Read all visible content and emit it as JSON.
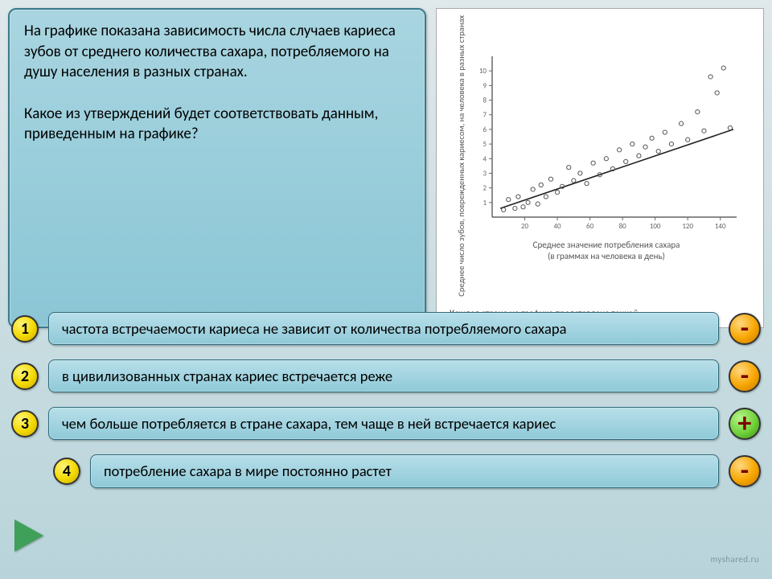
{
  "question": {
    "paragraph1": "На графике показана зависимость числа случаев кариеса зубов от среднего количества сахара, потребляемого на душу населения в разных странах.",
    "paragraph2": "Какое из утверждений будет соответствовать данным, приведенным на графике?"
  },
  "chart": {
    "type": "scatter",
    "y_label": "Среднее число зубов, поврежденных кариесом, на человека в разных странах",
    "x_label_line1": "Среднее значение потребления сахара",
    "x_label_line2": "(в граммах на человека в день)",
    "caption": "Каждая страна на графике представлена точкой.",
    "xlim": [
      0,
      150
    ],
    "ylim": [
      0,
      11
    ],
    "xticks": [
      20,
      40,
      60,
      80,
      100,
      120,
      140
    ],
    "yticks": [
      1,
      2,
      3,
      4,
      5,
      6,
      7,
      8,
      9,
      10
    ],
    "trend_line": {
      "x1": 5,
      "y1": 0.6,
      "x2": 148,
      "y2": 6.0
    },
    "points": [
      [
        7,
        0.5
      ],
      [
        10,
        1.2
      ],
      [
        14,
        0.6
      ],
      [
        16,
        1.4
      ],
      [
        19,
        0.7
      ],
      [
        22,
        1.0
      ],
      [
        25,
        1.9
      ],
      [
        28,
        0.9
      ],
      [
        30,
        2.2
      ],
      [
        33,
        1.4
      ],
      [
        36,
        2.6
      ],
      [
        40,
        1.7
      ],
      [
        43,
        2.1
      ],
      [
        47,
        3.4
      ],
      [
        50,
        2.5
      ],
      [
        54,
        3.0
      ],
      [
        58,
        2.3
      ],
      [
        62,
        3.7
      ],
      [
        66,
        2.9
      ],
      [
        70,
        4.0
      ],
      [
        74,
        3.3
      ],
      [
        78,
        4.6
      ],
      [
        82,
        3.8
      ],
      [
        86,
        5.0
      ],
      [
        90,
        4.2
      ],
      [
        94,
        4.8
      ],
      [
        98,
        5.4
      ],
      [
        102,
        4.5
      ],
      [
        106,
        5.8
      ],
      [
        110,
        5.0
      ],
      [
        116,
        6.4
      ],
      [
        120,
        5.3
      ],
      [
        126,
        7.2
      ],
      [
        130,
        5.9
      ],
      [
        134,
        9.6
      ],
      [
        138,
        8.5
      ],
      [
        142,
        10.2
      ],
      [
        146,
        6.1
      ]
    ],
    "axis_color": "#444444",
    "tick_color": "#666666",
    "point_stroke": "#555555",
    "trend_color": "#222222",
    "background": "#ffffff",
    "tick_fontsize": 9,
    "label_fontsize": 11
  },
  "answers": [
    {
      "num": "1",
      "text": "частота встречаемости кариеса не зависит от количества потребляемого сахара",
      "result": "-",
      "result_kind": "minus"
    },
    {
      "num": "2",
      "text": "в цивилизованных странах кариес встречается реже",
      "result": "-",
      "result_kind": "minus"
    },
    {
      "num": "3",
      "text": "чем больше потребляется в стране сахара, тем чаще в ней встречается кариес",
      "result": "+",
      "result_kind": "plus"
    },
    {
      "num": "4",
      "text": "потребление сахара в мире постоянно растет",
      "result": "-",
      "result_kind": "minus"
    }
  ],
  "watermark": "myshared.ru"
}
